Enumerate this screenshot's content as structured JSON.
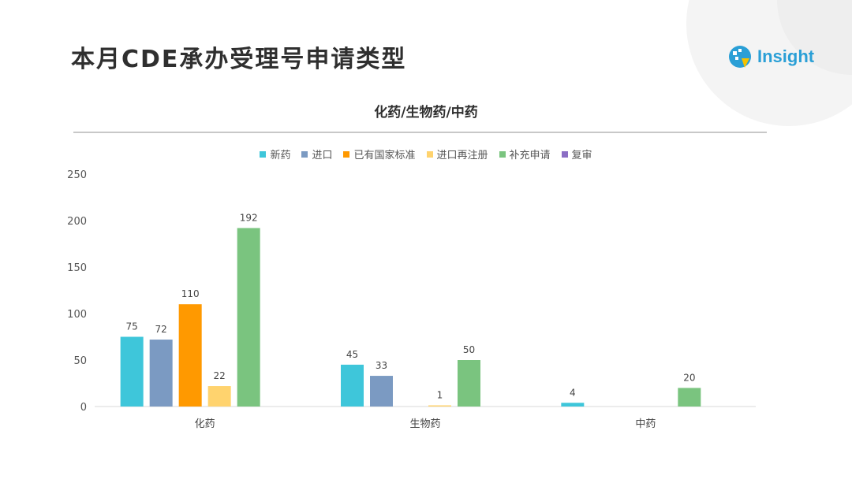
{
  "header": {
    "title": "本月CDE承办受理号申请类型"
  },
  "logo": {
    "text": "Insight",
    "brand_color": "#2a9fd6",
    "accent_color": "#f5c200"
  },
  "chart_data": {
    "type": "bar",
    "title": "化药/生物药/中药",
    "categories": [
      "化药",
      "生物药",
      "中药"
    ],
    "ylim": [
      0,
      250
    ],
    "yticks": [
      0,
      50,
      100,
      150,
      200,
      250
    ],
    "grid": false,
    "legend_position": "top",
    "series": [
      {
        "name": "新药",
        "color": "#3ec6da",
        "values": [
          75,
          45,
          4
        ]
      },
      {
        "name": "进口",
        "color": "#7b9ac2",
        "values": [
          72,
          33,
          0
        ]
      },
      {
        "name": "已有国家标准",
        "color": "#ff9900",
        "values": [
          110,
          0,
          0
        ]
      },
      {
        "name": "进口再注册",
        "color": "#ffd36e",
        "values": [
          22,
          1,
          0
        ]
      },
      {
        "name": "补充申请",
        "color": "#7ac47f",
        "values": [
          192,
          50,
          20
        ]
      },
      {
        "name": "复审",
        "color": "#8b6ec4",
        "values": [
          0,
          0,
          0
        ]
      }
    ]
  }
}
